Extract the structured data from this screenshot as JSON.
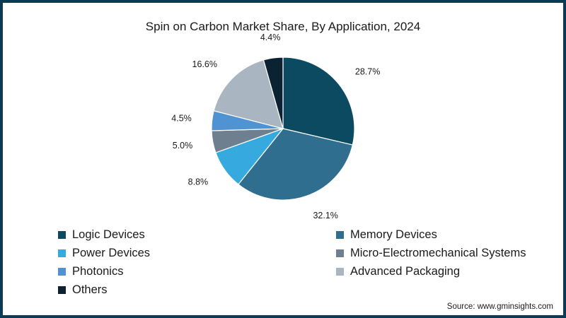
{
  "chart_data": {
    "type": "pie",
    "title": "Spin on Carbon Market Share, By Application, 2024",
    "unit": "%",
    "legend_placement": "bottom",
    "slices": [
      {
        "name": "Logic Devices",
        "value": 28.7,
        "label": "28.7%",
        "color": "#0c4a61"
      },
      {
        "name": "Memory Devices",
        "value": 32.1,
        "label": "32.1%",
        "color": "#2f6e8f"
      },
      {
        "name": "Power Devices",
        "value": 8.8,
        "label": "8.8%",
        "color": "#36a9df"
      },
      {
        "name": "Micro-Electromechanical Systems",
        "value": 5.0,
        "label": "5.0%",
        "color": "#6e7f8f"
      },
      {
        "name": "Photonics",
        "value": 4.5,
        "label": "4.5%",
        "color": "#4f93d2"
      },
      {
        "name": "Advanced Packaging",
        "value": 16.6,
        "label": "16.6%",
        "color": "#a9b5c1"
      },
      {
        "name": "Others",
        "value": 4.4,
        "label": "4.4%",
        "color": "#0b2233"
      }
    ]
  },
  "source": "Source: www.gminsights.com"
}
